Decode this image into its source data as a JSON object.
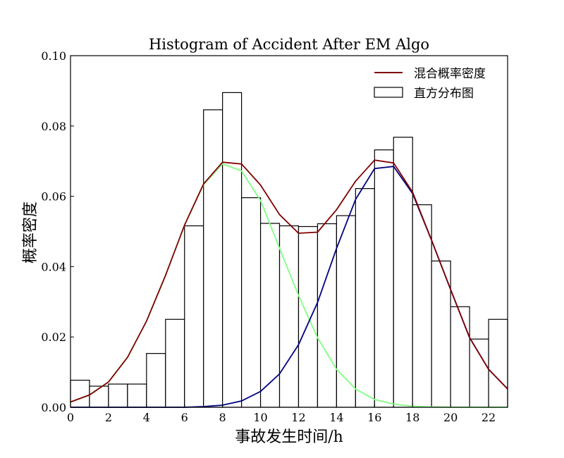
{
  "chart_data": {
    "type": "bar",
    "title": "Histogram of Accident After EM Algo",
    "xlabel": "事故发生时间/h",
    "ylabel": "概率密度",
    "xlim": [
      0,
      23
    ],
    "ylim": [
      0,
      0.1
    ],
    "xticks": [
      "0",
      "2",
      "4",
      "6",
      "8",
      "10",
      "12",
      "14",
      "16",
      "18",
      "20",
      "22"
    ],
    "yticks": [
      "0.00",
      "0.02",
      "0.04",
      "0.06",
      "0.08",
      "0.10"
    ],
    "legend_position": "top-right",
    "legend": [
      {
        "label": "混合概率密度",
        "kind": "line",
        "color": "#800000"
      },
      {
        "label": "直方分布图",
        "kind": "box",
        "color": "#000000"
      }
    ],
    "histogram": {
      "name": "直方分布图",
      "bin_width": 1,
      "bin_start": [
        0,
        1,
        2,
        3,
        4,
        5,
        6,
        7,
        8,
        9,
        10,
        11,
        12,
        13,
        14,
        15,
        16,
        17,
        18,
        19,
        20,
        21,
        22
      ],
      "density": [
        0.0077,
        0.006,
        0.0066,
        0.0066,
        0.0153,
        0.025,
        0.0516,
        0.0846,
        0.0895,
        0.0596,
        0.0523,
        0.0516,
        0.0514,
        0.0522,
        0.0545,
        0.0622,
        0.0732,
        0.0768,
        0.0576,
        0.0416,
        0.0286,
        0.0194,
        0.025
      ]
    },
    "series": [
      {
        "name": "混合概率密度",
        "color": "#800000",
        "x": [
          0,
          1,
          2,
          3,
          4,
          5,
          6,
          7,
          8,
          9,
          10,
          11,
          12,
          13,
          14,
          15,
          16,
          17,
          18,
          19,
          20,
          21,
          22,
          23
        ],
        "values": [
          0.0015,
          0.0035,
          0.0072,
          0.0142,
          0.0245,
          0.0375,
          0.0518,
          0.0635,
          0.0697,
          0.0692,
          0.0632,
          0.0548,
          0.0495,
          0.0498,
          0.0562,
          0.0643,
          0.0703,
          0.0695,
          0.0612,
          0.0475,
          0.0335,
          0.0198,
          0.0108,
          0.0052
        ]
      },
      {
        "color": "#80ff80",
        "x": [
          0,
          1,
          2,
          3,
          4,
          5,
          6,
          7,
          8,
          9,
          10,
          11,
          12,
          13,
          14,
          15,
          16,
          17,
          18,
          19,
          20,
          21,
          22,
          23
        ],
        "values": [
          0.0015,
          0.0035,
          0.0072,
          0.0142,
          0.0245,
          0.0375,
          0.0518,
          0.0633,
          0.0692,
          0.0672,
          0.0588,
          0.0452,
          0.0318,
          0.0198,
          0.0108,
          0.0052,
          0.0022,
          0.0009,
          0.0003,
          0.0001,
          0,
          0,
          0,
          0
        ]
      },
      {
        "color": "#000080",
        "x": [
          0,
          1,
          2,
          3,
          4,
          5,
          6,
          7,
          8,
          9,
          10,
          11,
          12,
          13,
          14,
          15,
          16,
          17,
          18,
          19,
          20,
          21,
          22,
          23
        ],
        "values": [
          0,
          0,
          0,
          0,
          0,
          0,
          0,
          0.0002,
          0.0006,
          0.0018,
          0.0045,
          0.0095,
          0.0178,
          0.0298,
          0.0452,
          0.0591,
          0.0679,
          0.0685,
          0.0608,
          0.0475,
          0.0335,
          0.0198,
          0.0108,
          0.0052
        ]
      }
    ]
  }
}
